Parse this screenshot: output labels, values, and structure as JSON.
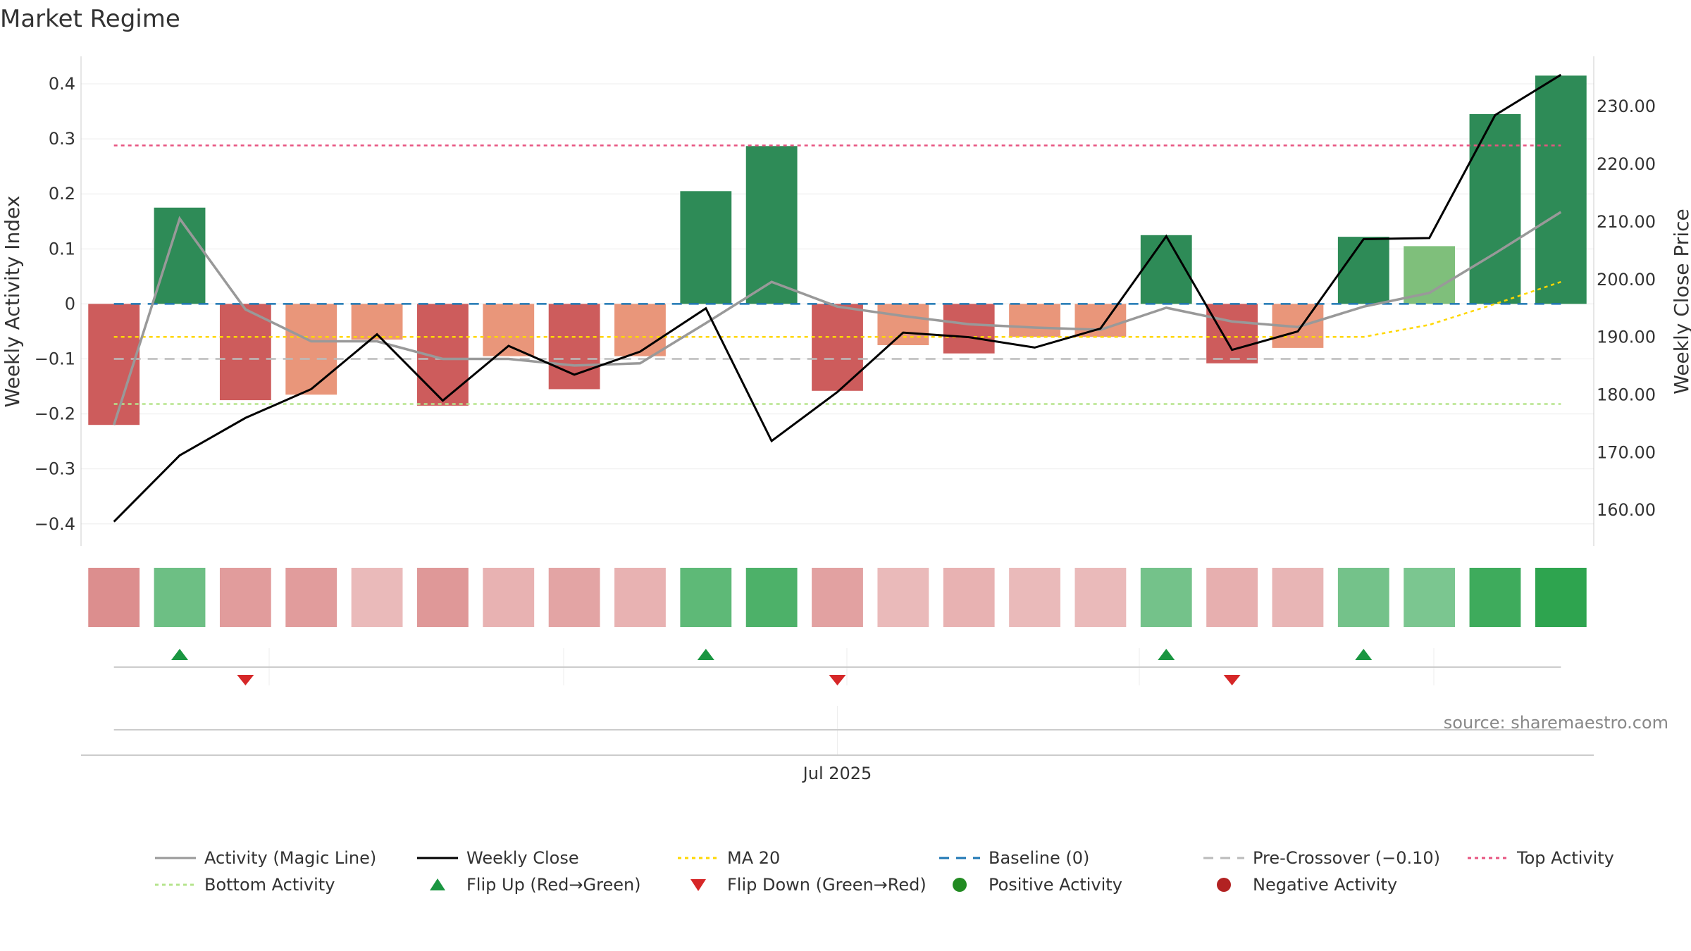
{
  "colors": {
    "strong_green": "#2e8b57",
    "light_green": "#7fbf7b",
    "strong_red": "#cd5c5c",
    "light_red": "#e9967a",
    "magic_line": "#999999",
    "weekly_close": "#000000",
    "ma20": "#ffd700",
    "baseline": "#1f77b4",
    "pre_crossover": "#bbbbbb",
    "top_activity": "#e75480",
    "bottom_activity": "#b5e48c",
    "flip_up": "#1a9641",
    "flip_down": "#d62728",
    "positive": "#228b22",
    "negative": "#b22222"
  },
  "chart_data": {
    "type": "bar",
    "title": "Market Regime",
    "ylabel": "Weekly Activity Index",
    "y2label": "Weekly Close Price",
    "ylim": [
      -0.44,
      0.45
    ],
    "y2lim": [
      153.8,
      238.7
    ],
    "yticks": [
      {
        "value": 0.4,
        "label": "0.4"
      },
      {
        "value": 0.3,
        "label": "0.3"
      },
      {
        "value": 0.2,
        "label": "0.2"
      },
      {
        "value": 0.1,
        "label": "0.1"
      },
      {
        "value": 0,
        "label": "0"
      },
      {
        "value": -0.1,
        "label": "−0.1"
      },
      {
        "value": -0.2,
        "label": "−0.2"
      },
      {
        "value": -0.3,
        "label": "−0.3"
      },
      {
        "value": -0.4,
        "label": "−0.4"
      }
    ],
    "y2ticks": [
      {
        "value": 230,
        "label": "230.00"
      },
      {
        "value": 220,
        "label": "220.00"
      },
      {
        "value": 210,
        "label": "210.00"
      },
      {
        "value": 200,
        "label": "200.00"
      },
      {
        "value": 190,
        "label": "190.00"
      },
      {
        "value": 180,
        "label": "180.00"
      },
      {
        "value": 170,
        "label": "170.00"
      },
      {
        "value": 160,
        "label": "160.00"
      }
    ],
    "x_label": "Jul 2025",
    "x_label_index": 11,
    "activity": [
      -0.22,
      0.175,
      -0.175,
      -0.165,
      -0.065,
      -0.185,
      -0.095,
      -0.155,
      -0.095,
      0.205,
      0.287,
      -0.158,
      -0.075,
      -0.09,
      -0.06,
      -0.06,
      0.125,
      -0.108,
      -0.08,
      0.122,
      0.105,
      0.345,
      0.415
    ],
    "bar_tone": [
      "strong",
      "strong",
      "strong",
      "light",
      "light",
      "strong",
      "light",
      "strong",
      "light",
      "strong",
      "strong",
      "strong",
      "light",
      "strong",
      "light",
      "light",
      "strong",
      "strong",
      "light",
      "strong",
      "light",
      "strong",
      "strong"
    ],
    "magic_line": [
      -0.22,
      0.155,
      -0.01,
      -0.068,
      -0.068,
      -0.1,
      -0.1,
      -0.112,
      -0.108,
      -0.035,
      0.04,
      -0.005,
      -0.022,
      -0.037,
      -0.043,
      -0.047,
      -0.007,
      -0.032,
      -0.042,
      -0.005,
      0.02,
      0.092,
      0.167
    ],
    "weekly_close": [
      158.0,
      169.5,
      176.0,
      181.0,
      190.5,
      179.0,
      188.5,
      183.5,
      187.5,
      195.0,
      172.0,
      180.5,
      190.8,
      190.0,
      188.2,
      191.5,
      207.5,
      187.8,
      191.0,
      207.0,
      207.2,
      228.5,
      235.5
    ],
    "ma20": [
      -0.06,
      -0.06,
      -0.06,
      -0.06,
      -0.06,
      -0.06,
      -0.06,
      -0.06,
      -0.06,
      -0.06,
      -0.06,
      -0.06,
      -0.06,
      -0.06,
      -0.06,
      -0.06,
      -0.06,
      -0.06,
      -0.06,
      -0.06,
      -0.038,
      0.0,
      0.04
    ],
    "baseline": 0,
    "pre_crossover": -0.1,
    "top_activity": 0.288,
    "bottom_activity": -0.182,
    "regime_strength": [
      -0.55,
      0.5,
      -0.45,
      -0.45,
      -0.25,
      -0.48,
      -0.3,
      -0.4,
      -0.3,
      0.6,
      0.72,
      -0.42,
      -0.25,
      -0.3,
      -0.25,
      -0.25,
      0.45,
      -0.32,
      -0.28,
      0.45,
      0.4,
      0.82,
      0.95
    ],
    "flip_up_indices": [
      1,
      9,
      16,
      19
    ],
    "flip_down_indices": [
      2,
      11,
      17
    ],
    "legend": [
      {
        "label": "Activity (Magic Line)",
        "kind": "line",
        "color": "#999999",
        "dash": ""
      },
      {
        "label": "Weekly Close",
        "kind": "line",
        "color": "#000000",
        "dash": ""
      },
      {
        "label": "MA 20",
        "kind": "line",
        "color": "#ffd700",
        "dash": "5 5"
      },
      {
        "label": "Baseline (0)",
        "kind": "line",
        "color": "#1f77b4",
        "dash": "14 10"
      },
      {
        "label": "Pre-Crossover (−0.10)",
        "kind": "line",
        "color": "#bbbbbb",
        "dash": "14 10"
      },
      {
        "label": "Top Activity",
        "kind": "line",
        "color": "#e75480",
        "dash": "5 5"
      },
      {
        "label": "Bottom Activity",
        "kind": "line",
        "color": "#b5e48c",
        "dash": "5 5"
      },
      {
        "label": "Flip Up (Red→Green)",
        "kind": "tri-up",
        "color": "#1a9641",
        "dash": ""
      },
      {
        "label": "Flip Down (Green→Red)",
        "kind": "tri-down",
        "color": "#d62728",
        "dash": ""
      },
      {
        "label": "Positive Activity",
        "kind": "dot",
        "color": "#228b22",
        "dash": ""
      },
      {
        "label": "Negative Activity",
        "kind": "dot",
        "color": "#b22222",
        "dash": ""
      }
    ]
  },
  "source": "source: sharemaestro.com"
}
